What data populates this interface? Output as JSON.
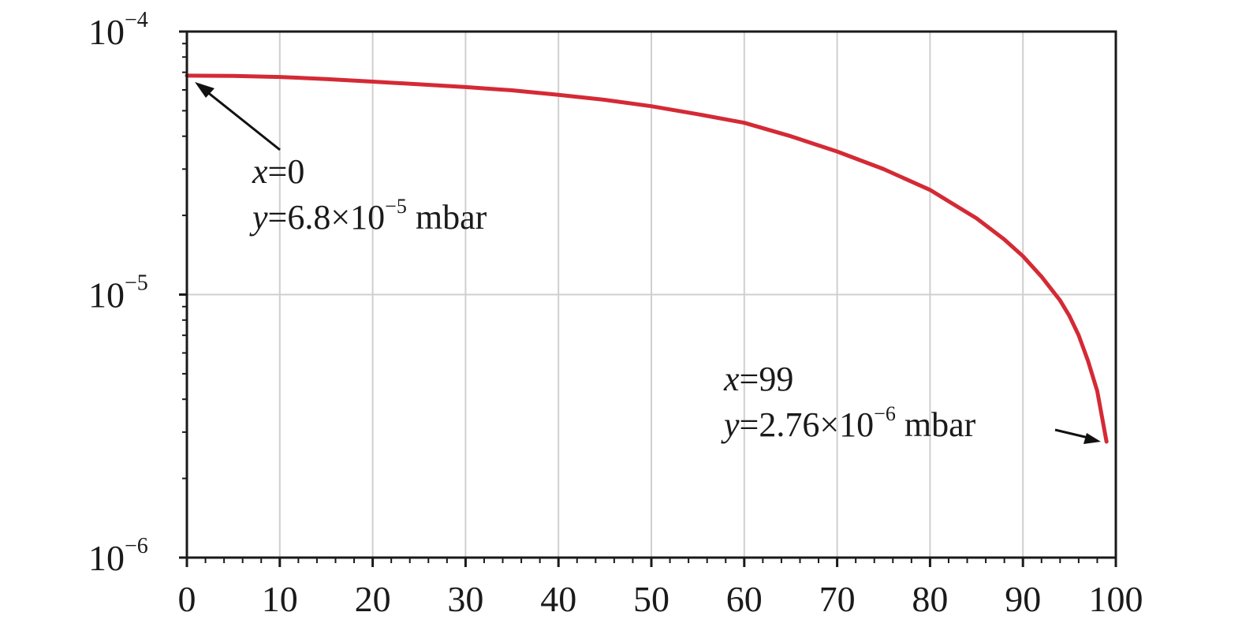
{
  "chart_data": {
    "type": "line",
    "title": "",
    "xlabel": "",
    "ylabel": "",
    "xlim": [
      0,
      100
    ],
    "ylim": [
      1e-06,
      0.0001
    ],
    "yscale": "log",
    "grid": true,
    "x_ticks": [
      "0",
      "10",
      "20",
      "30",
      "40",
      "50",
      "60",
      "70",
      "80",
      "90",
      "100"
    ],
    "y_ticks": [
      {
        "base": "10",
        "exp": "−6",
        "value": 1e-06
      },
      {
        "base": "10",
        "exp": "−5",
        "value": 1e-05
      },
      {
        "base": "10",
        "exp": "−4",
        "value": 0.0001
      }
    ],
    "series": [
      {
        "color": "#d42a35",
        "x": [
          0,
          5,
          10,
          15,
          20,
          25,
          30,
          35,
          40,
          45,
          50,
          55,
          60,
          65,
          70,
          75,
          80,
          85,
          88,
          90,
          92,
          94,
          95,
          96,
          97,
          98,
          99
        ],
        "y": [
          6.8e-05,
          6.78e-05,
          6.72e-05,
          6.6e-05,
          6.45e-05,
          6.3e-05,
          6.15e-05,
          5.98e-05,
          5.75e-05,
          5.5e-05,
          5.2e-05,
          4.85e-05,
          4.5e-05,
          4e-05,
          3.5e-05,
          3e-05,
          2.5e-05,
          1.95e-05,
          1.62e-05,
          1.4e-05,
          1.17e-05,
          9.5e-06,
          8.3e-06,
          7e-06,
          5.6e-06,
          4.3e-06,
          2.76e-06
        ]
      }
    ],
    "annotations": [
      {
        "line1": {
          "var": "x",
          "text": "=0"
        },
        "line2": {
          "var": "y",
          "mantissa": "=6.8×10",
          "exp": "−5",
          "unit": " mbar"
        },
        "points_to": [
          0,
          6.8e-05
        ]
      },
      {
        "line1": {
          "var": "x",
          "text": "=99"
        },
        "line2": {
          "var": "y",
          "mantissa": "=2.76×10",
          "exp": "−6",
          "unit": " mbar"
        },
        "points_to": [
          99,
          2.76e-06
        ]
      }
    ]
  }
}
